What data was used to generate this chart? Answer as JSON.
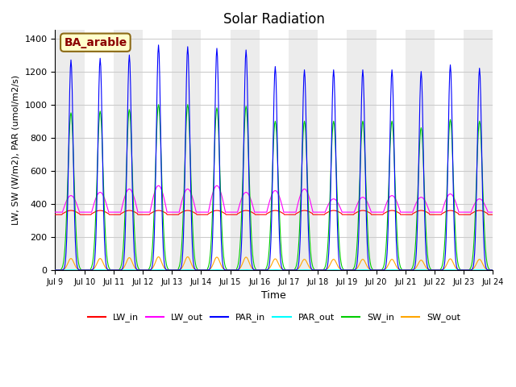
{
  "title": "Solar Radiation",
  "xlabel": "Time",
  "ylabel": "LW, SW (W/m2), PAR (umol/m2/s)",
  "annotation": "BA_arable",
  "ylim": [
    0,
    1450
  ],
  "yticks": [
    0,
    200,
    400,
    600,
    800,
    1000,
    1200,
    1400
  ],
  "xtick_labels": [
    "Jul 9",
    "Jul 10",
    "Jul 11",
    "Jul 12",
    "Jul 13",
    "Jul 14",
    "Jul 15",
    "Jul 16",
    "Jul 17",
    "Jul 18",
    "Jul 19",
    "Jul 20",
    "Jul 21",
    "Jul 22",
    "Jul 23",
    "Jul 24"
  ],
  "colors": {
    "LW_in": "#ff0000",
    "LW_out": "#ff00ff",
    "PAR_in": "#0000ff",
    "PAR_out": "#00ffff",
    "SW_in": "#00cc00",
    "SW_out": "#ffa500"
  },
  "n_days": 15,
  "steps_per_day": 48,
  "LW_in_base": 340,
  "LW_in_amp": 20,
  "LW_out_base": 350,
  "LW_out_amp_day": [
    450,
    470,
    490,
    510,
    490,
    510,
    470,
    480,
    490,
    430,
    440,
    450,
    440,
    460,
    430
  ],
  "PAR_in_peaks": [
    1270,
    1280,
    1300,
    1360,
    1350,
    1340,
    1330,
    1230,
    1210,
    1210,
    1210,
    1210,
    1200,
    1240,
    1220
  ],
  "SW_in_peaks": [
    950,
    960,
    970,
    1000,
    1000,
    980,
    990,
    900,
    900,
    900,
    900,
    900,
    860,
    910,
    900
  ],
  "SW_out_peaks": [
    70,
    70,
    75,
    80,
    80,
    78,
    78,
    68,
    65,
    65,
    65,
    65,
    60,
    68,
    65
  ],
  "grid_color": "#cccccc",
  "stripe_alpha": 0.15
}
